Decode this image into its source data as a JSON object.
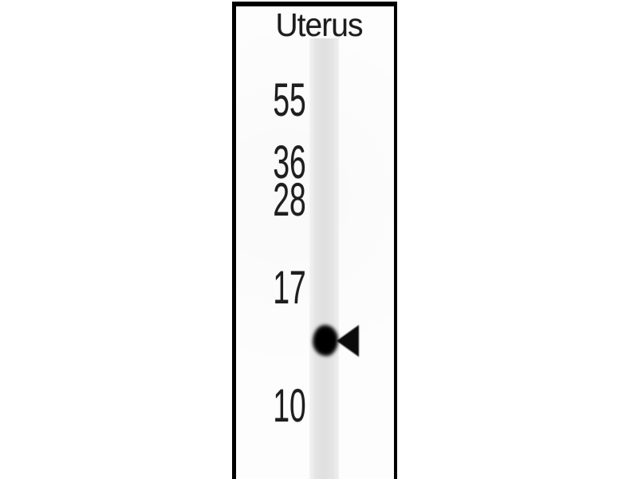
{
  "figure": {
    "sample_label": "Uterus",
    "mw_markers": [
      {
        "label": "55"
      },
      {
        "label": "36"
      },
      {
        "label": "28"
      },
      {
        "label": "17"
      },
      {
        "label": "10"
      }
    ],
    "icons": {
      "band_pointer": "left-arrowhead-icon"
    },
    "colors": {
      "panel_border": "#000000",
      "lane": "#e3e3e3",
      "band": "#0a0a0a",
      "text": "#1e1e1e",
      "background": "#ffffff"
    }
  }
}
